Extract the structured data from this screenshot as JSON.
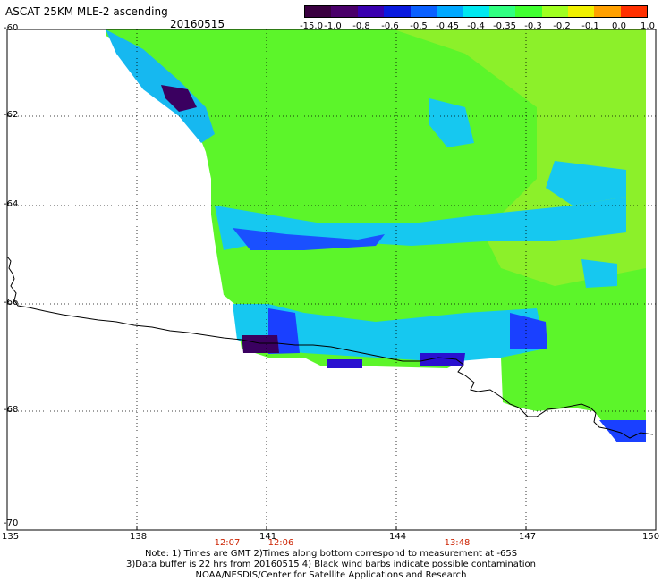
{
  "header": {
    "title": "ASCAT 25KM MLE-2 ascending",
    "date": "20160515"
  },
  "colorbar": {
    "labels": [
      "-15.0",
      "-1.0",
      "-0.8",
      "-0.6",
      "-0.5",
      "-0.45",
      "-0.4",
      "-0.35",
      "-0.3",
      "-0.2",
      "-0.1",
      "0.0",
      "1.0"
    ],
    "colors": [
      "#3a0040",
      "#4a006a",
      "#3a00b0",
      "#0a1adf",
      "#0a60ff",
      "#00a8ff",
      "#00e8f0",
      "#30ff80",
      "#40ff30",
      "#a0ff20",
      "#f0f000",
      "#ffa000",
      "#ff3000"
    ]
  },
  "map": {
    "lat_labels": [
      "-60",
      "-62",
      "-64",
      "-66",
      "-68",
      "-70"
    ],
    "lon_labels": [
      "135",
      "138",
      "141",
      "144",
      "147",
      "150"
    ],
    "time_labels": [
      "12:07",
      "12:06",
      "13:48"
    ]
  },
  "notes": {
    "line1": "Note: 1) Times are GMT 2)Times along bottom correspond to measurement at -65S",
    "line2": "3)Data buffer is 22 hrs from 20160515 4) Black wind barbs indicate possible contamination",
    "line3": "NOAA/NESDIS/Center for Satellite Applications and Research"
  }
}
